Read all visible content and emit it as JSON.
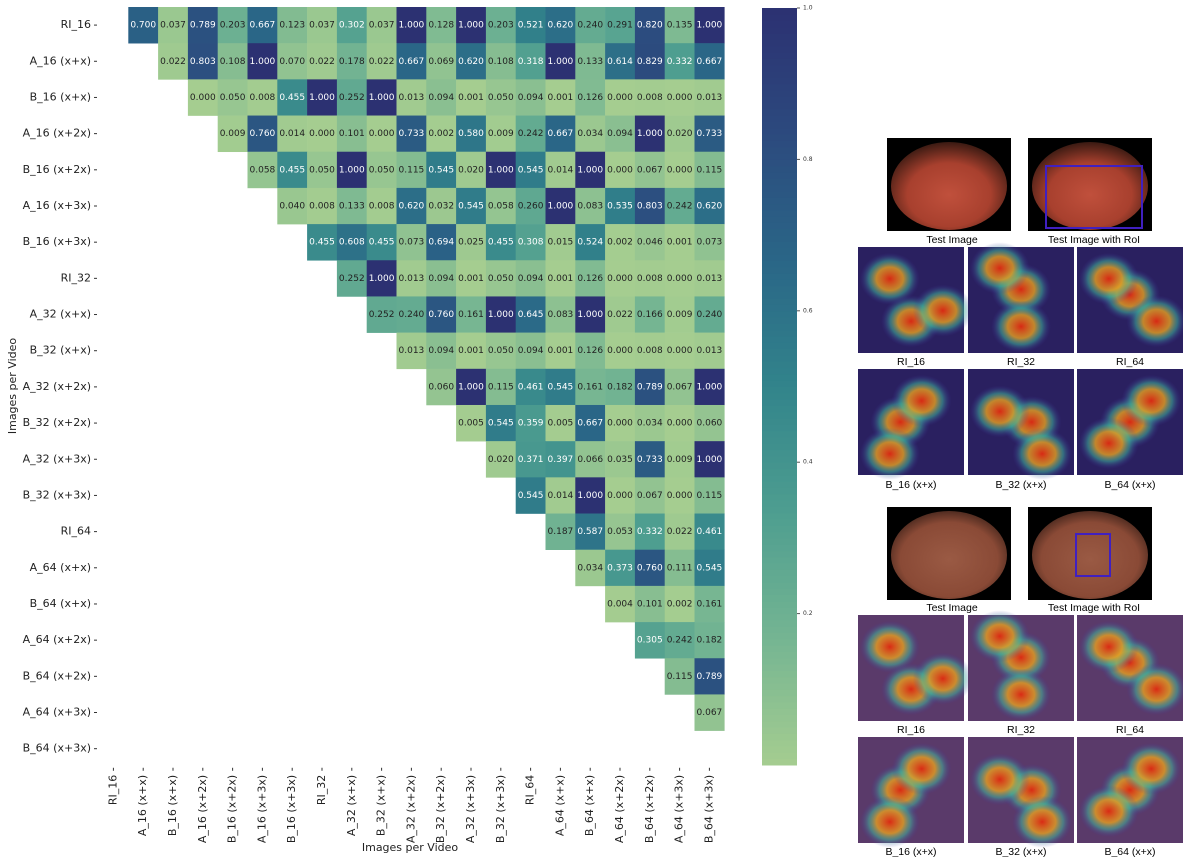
{
  "chart_data": {
    "type": "heatmap",
    "x_label": "Images per Video",
    "y_label": "Images per Video",
    "categories": [
      "RI_16",
      "A_16 (x+x)",
      "B_16 (x+x)",
      "A_16 (x+2x)",
      "B_16 (x+2x)",
      "A_16 (x+3x)",
      "B_16 (x+3x)",
      "RI_32",
      "A_32 (x+x)",
      "B_32 (x+x)",
      "A_32 (x+2x)",
      "B_32 (x+2x)",
      "A_32 (x+3x)",
      "B_32 (x+3x)",
      "RI_64",
      "A_64 (x+x)",
      "B_64 (x+x)",
      "A_64 (x+2x)",
      "B_64 (x+2x)",
      "A_64 (x+3x)",
      "B_64 (x+3x)"
    ],
    "values": [
      [
        0.7,
        0.037,
        0.789,
        0.203,
        0.667,
        0.123,
        0.037,
        0.302,
        0.037,
        1,
        0.128,
        1,
        0.203,
        0.521,
        0.62,
        0.24,
        0.291,
        0.82,
        0.135,
        1
      ],
      [
        0.022,
        0.803,
        0.108,
        1,
        0.07,
        0.022,
        0.178,
        0.022,
        0.667,
        0.069,
        0.62,
        0.108,
        0.318,
        1,
        0.133,
        0.614,
        0.829,
        0.332,
        0.667
      ],
      [
        0,
        0.05,
        0.008,
        0.455,
        1,
        0.252,
        1,
        0.013,
        0.094,
        0.001,
        0.05,
        0.094,
        0.001,
        0.126,
        0,
        0.008,
        0,
        0.013
      ],
      [
        0.009,
        0.76,
        0.014,
        0,
        0.101,
        0,
        0.733,
        0.002,
        0.58,
        0.009,
        0.242,
        0.667,
        0.034,
        0.094,
        1,
        0.02,
        0.733
      ],
      [
        0.058,
        0.455,
        0.05,
        1,
        0.05,
        0.115,
        0.545,
        0.02,
        1,
        0.545,
        0.014,
        1,
        0,
        0.067,
        0,
        0.115
      ],
      [
        0.04,
        0.008,
        0.133,
        0.008,
        0.62,
        0.032,
        0.545,
        0.058,
        0.26,
        1,
        0.083,
        0.535,
        0.803,
        0.242,
        0.62
      ],
      [
        0.455,
        0.608,
        0.455,
        0.073,
        0.694,
        0.025,
        0.455,
        0.308,
        0.015,
        0.524,
        0.002,
        0.046,
        0.001,
        0.073
      ],
      [
        0.252,
        1,
        0.013,
        0.094,
        0.001,
        0.05,
        0.094,
        0.001,
        0.126,
        0,
        0.008,
        0,
        0.013
      ],
      [
        0.252,
        0.24,
        0.76,
        0.161,
        1,
        0.645,
        0.083,
        1,
        0.022,
        0.166,
        0.009,
        0.24
      ],
      [
        0.013,
        0.094,
        0.001,
        0.05,
        0.094,
        0.001,
        0.126,
        0,
        0.008,
        0,
        0.013
      ],
      [
        0.06,
        1,
        0.115,
        0.461,
        0.545,
        0.161,
        0.182,
        0.789,
        0.067,
        1
      ],
      [
        0.005,
        0.545,
        0.359,
        0.005,
        0.667,
        0,
        0.034,
        0,
        0.06
      ],
      [
        0.02,
        0.371,
        0.397,
        0.066,
        0.035,
        0.733,
        0.009,
        1
      ],
      [
        0.545,
        0.014,
        1,
        0,
        0.067,
        0,
        0.115
      ],
      [
        0.187,
        0.587,
        0.053,
        0.332,
        0.022,
        0.461
      ],
      [
        0.034,
        0.373,
        0.76,
        0.111,
        0.545
      ],
      [
        0.004,
        0.101,
        0.002,
        0.161
      ],
      [
        0.305,
        0.242,
        0.182
      ],
      [
        0.115,
        0.789
      ],
      [
        0.067
      ]
    ],
    "value_labels": [
      [
        "0.700",
        "0.037",
        "0.789",
        "0.203",
        "0.667",
        "0.123",
        "0.037",
        "0.302",
        "0.037",
        "1.000",
        "0.128",
        "1.000",
        "0.203",
        "0.521",
        "0.620",
        "0.240",
        "0.291",
        "0.820",
        "0.135",
        "1.000"
      ],
      [
        "0.022",
        "0.803",
        "0.108",
        "1.000",
        "0.070",
        "0.022",
        "0.178",
        "0.022",
        "0.667",
        "0.069",
        "0.620",
        "0.108",
        "0.318",
        "1.000",
        "0.133",
        "0.614",
        "0.829",
        "0.332",
        "0.667"
      ],
      [
        "0.000",
        "0.050",
        "0.008",
        "0.455",
        "1.000",
        "0.252",
        "1.000",
        "0.013",
        "0.094",
        "0.001",
        "0.050",
        "0.094",
        "0.001",
        "0.126",
        "0.000",
        "0.008",
        "0.000",
        "0.013"
      ],
      [
        "0.009",
        "0.760",
        "0.014",
        "0.000",
        "0.101",
        "0.000",
        "0.733",
        "0.002",
        "0.580",
        "0.009",
        "0.242",
        "0.667",
        "0.034",
        "0.094",
        "1.000",
        "0.020",
        "0.733"
      ],
      [
        "0.058",
        "0.455",
        "0.050",
        "1.000",
        "0.050",
        "0.115",
        "0.545",
        "0.020",
        "1.000",
        "0.545",
        "0.014",
        "1.000",
        "0.000",
        "0.067",
        "0.000",
        "0.115"
      ],
      [
        "0.040",
        "0.008",
        "0.133",
        "0.008",
        "0.620",
        "0.032",
        "0.545",
        "0.058",
        "0.260",
        "1.000",
        "0.083",
        "0.535",
        "0.803",
        "0.242",
        "0.620"
      ],
      [
        "0.455",
        "0.608",
        "0.455",
        "0.073",
        "0.694",
        "0.025",
        "0.455",
        "0.308",
        "0.015",
        "0.524",
        "0.002",
        "0.046",
        "0.001",
        "0.073"
      ],
      [
        "0.252",
        "1.000",
        "0.013",
        "0.094",
        "0.001",
        "0.050",
        "0.094",
        "0.001",
        "0.126",
        "0.000",
        "0.008",
        "0.000",
        "0.013"
      ],
      [
        "0.252",
        "0.240",
        "0.760",
        "0.161",
        "1.000",
        "0.645",
        "0.083",
        "1.000",
        "0.022",
        "0.166",
        "0.009",
        "0.240"
      ],
      [
        "0.013",
        "0.094",
        "0.001",
        "0.050",
        "0.094",
        "0.001",
        "0.126",
        "0.000",
        "0.008",
        "0.000",
        "0.013"
      ],
      [
        "0.060",
        "1.000",
        "0.115",
        "0.461",
        "0.545",
        "0.161",
        "0.182",
        "0.789",
        "0.067",
        "1.000"
      ],
      [
        "0.005",
        "0.545",
        "0.359",
        "0.005",
        "0.667",
        "0.000",
        "0.034",
        "0.000",
        "0.060"
      ],
      [
        "0.020",
        "0.371",
        "0.397",
        "0.066",
        "0.035",
        "0.733",
        "0.009",
        "1.000"
      ],
      [
        "0.545",
        "0.014",
        "1.000",
        "0.000",
        "0.067",
        "0.000",
        "0.115"
      ],
      [
        "0.187",
        "0.587",
        "0.053",
        "0.332",
        "0.022",
        "0.461"
      ],
      [
        "0.034",
        "0.373",
        "0.760",
        "0.111",
        "0.545"
      ],
      [
        "0.004",
        "0.101",
        "0.002",
        "0.161"
      ],
      [
        "0.305",
        "0.242",
        "0.182"
      ],
      [
        "0.115",
        "0.789"
      ],
      [
        "0.067"
      ]
    ],
    "colormap": [
      "#a5cd90",
      "#75b592",
      "#4e9e90",
      "#32848b",
      "#2a6687",
      "#2c4a7e",
      "#2c3172"
    ],
    "clim": [
      0,
      1
    ],
    "cticks": [
      0.2,
      0.4,
      0.6,
      0.8,
      {
        "value": 1,
        "label": "1.0"
      }
    ]
  },
  "side_panels": [
    {
      "test_caption": "Test Image",
      "roi_caption": "Test Image with RoI",
      "map_captions": [
        "RI_16",
        "RI_32",
        "RI_64",
        "B_16 (x+x)",
        "B_32 (x+x)",
        "B_64 (x+x)"
      ]
    },
    {
      "test_caption": "Test Image",
      "roi_caption": "Test Image with RoI",
      "map_captions": [
        "RI_16",
        "RI_32",
        "RI_64",
        "B_16 (x+x)",
        "B_32 (x+x)",
        "B_64 (x+x)"
      ]
    }
  ]
}
